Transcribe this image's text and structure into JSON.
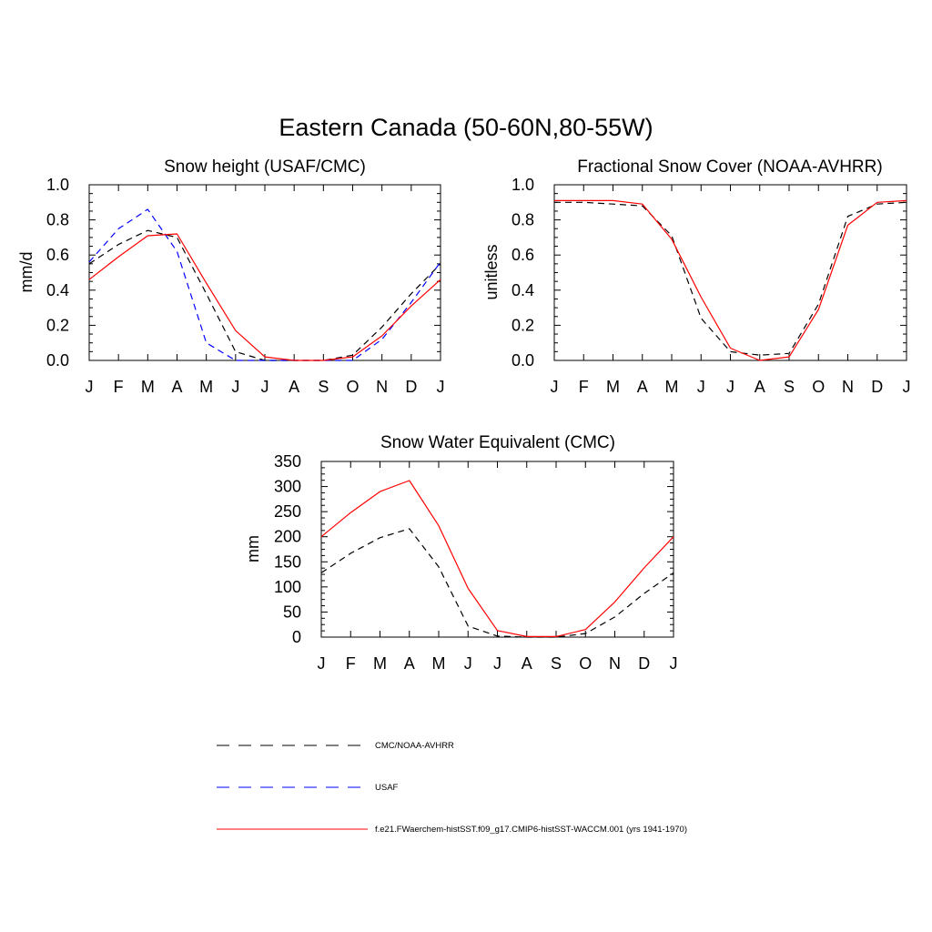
{
  "title": "Eastern Canada (50-60N,80-55W)",
  "legend": [
    {
      "label": "CMC/NOAA-AVHRR",
      "color": "#000000",
      "dash": "dashed"
    },
    {
      "label": "USAF",
      "color": "#0000ff",
      "dash": "dashed"
    },
    {
      "label": "f.e21.FWaerchem-histSST.f09_g17.CMIP6-histSST-WACCM.001 (yrs 1941-1970)",
      "color": "#ff0000",
      "dash": "solid"
    }
  ],
  "chart_data": [
    {
      "type": "line",
      "title": "Snow height (USAF/CMC)",
      "xlabel": "",
      "ylabel": "mm/d",
      "x": [
        "J",
        "F",
        "M",
        "A",
        "M",
        "J",
        "J",
        "A",
        "S",
        "O",
        "N",
        "D",
        "J"
      ],
      "ylim": [
        0,
        1.0
      ],
      "yticks": [
        "0.0",
        "0.2",
        "0.4",
        "0.6",
        "0.8",
        "1.0"
      ],
      "series": [
        {
          "name": "CMC/NOAA-AVHRR",
          "color": "#000000",
          "dash": "dashed",
          "values": [
            0.55,
            0.66,
            0.74,
            0.7,
            0.38,
            0.05,
            0.0,
            0.0,
            0.0,
            0.03,
            0.19,
            0.38,
            0.55
          ]
        },
        {
          "name": "USAF",
          "color": "#0000ff",
          "dash": "dashed",
          "values": [
            0.56,
            0.75,
            0.86,
            0.62,
            0.1,
            0.0,
            0.0,
            0.0,
            0.0,
            0.0,
            0.12,
            0.33,
            0.56
          ]
        },
        {
          "name": "f.e21.FWaerchem-histSST.f09_g17.CMIP6-histSST-WACCM.001 (yrs 1941-1970)",
          "color": "#ff0000",
          "dash": "solid",
          "values": [
            0.46,
            0.59,
            0.71,
            0.72,
            0.44,
            0.17,
            0.02,
            0.0,
            0.0,
            0.02,
            0.14,
            0.31,
            0.46
          ]
        }
      ]
    },
    {
      "type": "line",
      "title": "Fractional Snow Cover (NOAA-AVHRR)",
      "xlabel": "",
      "ylabel": "unitless",
      "x": [
        "J",
        "F",
        "M",
        "A",
        "M",
        "J",
        "J",
        "A",
        "S",
        "O",
        "N",
        "D",
        "J"
      ],
      "ylim": [
        0,
        1.0
      ],
      "yticks": [
        "0.0",
        "0.2",
        "0.4",
        "0.6",
        "0.8",
        "1.0"
      ],
      "series": [
        {
          "name": "CMC/NOAA-AVHRR",
          "color": "#000000",
          "dash": "dashed",
          "values": [
            0.9,
            0.9,
            0.89,
            0.88,
            0.71,
            0.24,
            0.05,
            0.03,
            0.04,
            0.32,
            0.82,
            0.89,
            0.9
          ]
        },
        {
          "name": "f.e21.FWaerchem-histSST.f09_g17.CMIP6-histSST-WACCM.001 (yrs 1941-1970)",
          "color": "#ff0000",
          "dash": "solid",
          "values": [
            0.91,
            0.91,
            0.91,
            0.89,
            0.69,
            0.36,
            0.07,
            0.0,
            0.02,
            0.29,
            0.77,
            0.9,
            0.91
          ]
        }
      ]
    },
    {
      "type": "line",
      "title": "Snow Water Equivalent (CMC)",
      "xlabel": "",
      "ylabel": "mm",
      "x": [
        "J",
        "F",
        "M",
        "A",
        "M",
        "J",
        "J",
        "A",
        "S",
        "O",
        "N",
        "D",
        "J"
      ],
      "ylim": [
        0,
        350
      ],
      "yticks": [
        "0",
        "50",
        "100",
        "150",
        "200",
        "250",
        "300",
        "350"
      ],
      "series": [
        {
          "name": "CMC/NOAA-AVHRR",
          "color": "#000000",
          "dash": "dashed",
          "values": [
            128,
            167,
            198,
            216,
            140,
            22,
            2,
            0,
            0,
            7,
            40,
            87,
            128
          ]
        },
        {
          "name": "f.e21.FWaerchem-histSST.f09_g17.CMIP6-histSST-WACCM.001 (yrs 1941-1970)",
          "color": "#ff0000",
          "dash": "solid",
          "values": [
            200,
            248,
            290,
            312,
            222,
            97,
            13,
            1,
            1,
            15,
            70,
            138,
            200
          ]
        }
      ]
    }
  ]
}
